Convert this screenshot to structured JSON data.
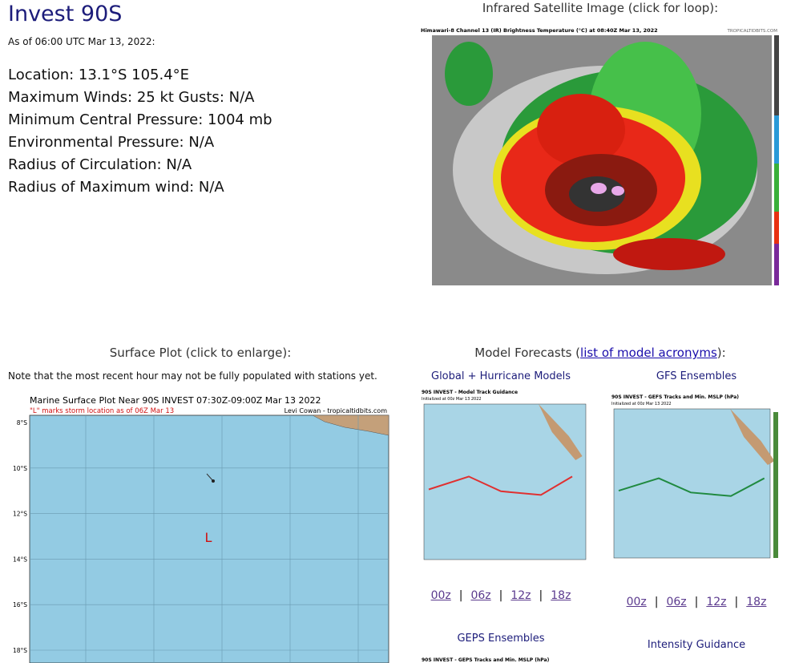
{
  "header": {
    "title": "Invest 90S",
    "timestamp": "As of 06:00 UTC Mar 13, 2022:"
  },
  "info": [
    "Location: 13.1°S 105.4°E",
    "Maximum Winds: 25 kt  Gusts: N/A",
    "Minimum Central Pressure: 1004 mb",
    "Environmental Pressure: N/A",
    "Radius of Circulation: N/A",
    "Radius of Maximum wind: N/A"
  ],
  "satellite": {
    "heading": "Infrared Satellite Image (click for loop):",
    "image_title": "Himawari-8 Channel 13 (IR) Brightness Temperature (°C) at 08:40Z Mar 13, 2022",
    "credit": "TROPICALTIDBITS.COM"
  },
  "surface": {
    "heading": "Surface Plot (click to enlarge):",
    "note": "Note that the most recent hour may not be fully populated with stations yet.",
    "plot_title": "Marine Surface Plot Near 90S INVEST 07:30Z-09:00Z Mar 13 2022",
    "plot_subtitle": "\"L\" marks storm location as of 06Z Mar 13",
    "credit": "Levi Cowan - tropicaltidbits.com",
    "lat_labels": [
      "8°S",
      "10°S",
      "12°S",
      "14°S",
      "16°S",
      "18°S"
    ],
    "storm_marker": "L"
  },
  "models": {
    "heading_prefix": "Model Forecasts (",
    "heading_link": "list of model acronyms",
    "heading_suffix": "):",
    "separator": "|",
    "panels": [
      {
        "title": "Global + Hurricane Models",
        "image_title": "90S INVEST - Model Track Guidance",
        "image_subtitle": "Initialized at 00z Mar 13 2022",
        "links": [
          "00z",
          "06z",
          "12z",
          "18z"
        ]
      },
      {
        "title": "GFS Ensembles",
        "image_title": "90S INVEST - GEFS Tracks and Min. MSLP (hPa)",
        "image_subtitle": "Initialized at 00z Mar 13 2022",
        "links": [
          "00z",
          "06z",
          "12z",
          "18z"
        ]
      },
      {
        "title": "GEPS Ensembles",
        "image_title": "90S INVEST - GEPS Tracks and Min. MSLP (hPa)"
      },
      {
        "title": "Intensity Guidance"
      }
    ]
  }
}
